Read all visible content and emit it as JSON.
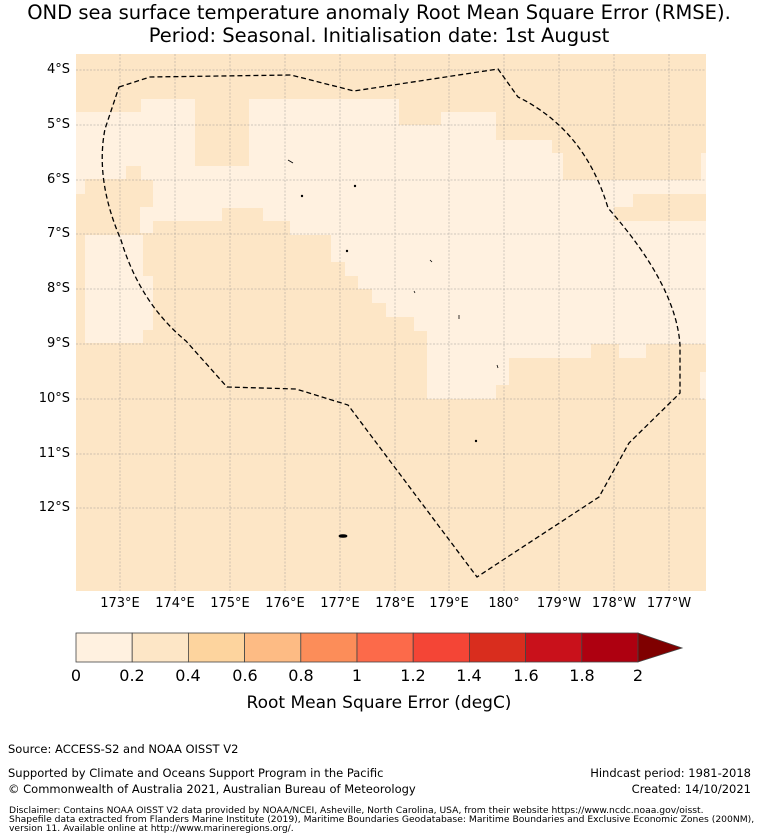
{
  "title": {
    "line1": "OND sea surface temperature anomaly Root Mean Square Error (RMSE).",
    "line2": "Period: Seasonal. Initialisation date: 1st August"
  },
  "map": {
    "lat_labels": [
      "4°S",
      "5°S",
      "6°S",
      "7°S",
      "8°S",
      "9°S",
      "10°S",
      "11°S",
      "12°S"
    ],
    "lon_labels": [
      "173°E",
      "174°E",
      "175°E",
      "176°E",
      "177°E",
      "178°E",
      "179°E",
      "180°",
      "179°W",
      "178°W",
      "177°W"
    ],
    "boundary_style": "dashed black line (Exclusive Economic Zone)",
    "colors": {
      "bin_0_0_2": "#fff1e0",
      "bin_0_2_0_4": "#fde6c6",
      "land": "#000000"
    }
  },
  "colorbar": {
    "ticks": [
      "0",
      "0.2",
      "0.4",
      "0.6",
      "0.8",
      "1",
      "1.2",
      "1.4",
      "1.6",
      "1.8",
      "2"
    ],
    "colors": [
      "#fff1e0",
      "#fde6c6",
      "#fdd49e",
      "#fdbb84",
      "#fc8d59",
      "#fc6a4a",
      "#f44536",
      "#d92d1e",
      "#c9111b",
      "#ae0010"
    ],
    "extend_color": "#7f0000",
    "label": "Root Mean Square Error (degC)"
  },
  "footer": {
    "source": "Source: ACCESS-S2 and NOAA OISST V2",
    "support": "Supported by Climate and Oceans Support Program in the Pacific",
    "copyright": "© Commonwealth of Australia 2021, Australian Bureau of Meteorology",
    "hindcast": "Hindcast period: 1981-2018",
    "created": "Created: 14/10/2021",
    "disclaimer_line1": "Disclaimer: Contains NOAA OISST V2 data provided by NOAA/NCEI, Asheville, North Carolina, USA, from their website https://www.ncdc.noaa.gov/oisst.",
    "disclaimer_line2": "Shapefile data extracted from Flanders Marine Institute (2019), Maritime Boundaries Geodatabase: Maritime Boundaries and Exclusive Economic Zones (200NM),",
    "disclaimer_line3": "version 11. Available online at http://www.marineregions.org/."
  }
}
